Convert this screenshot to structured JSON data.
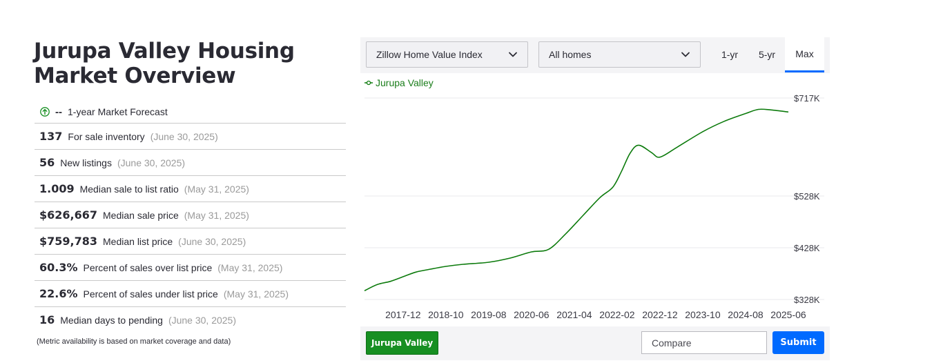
{
  "title": "Jurupa Valley Housing Market Overview",
  "forecast": {
    "value": "--",
    "label": "1-year Market Forecast",
    "icon": "arrow-up-circle-icon",
    "icon_color": "#178f22"
  },
  "metrics": [
    {
      "value": "137",
      "label": "For sale inventory",
      "date": "(June 30, 2025)"
    },
    {
      "value": "56",
      "label": "New listings",
      "date": "(June 30, 2025)"
    },
    {
      "value": "1.009",
      "label": "Median sale to list ratio",
      "date": "(May 31, 2025)"
    },
    {
      "value": "$626,667",
      "label": "Median sale price",
      "date": "(May 31, 2025)"
    },
    {
      "value": "$759,783",
      "label": "Median list price",
      "date": "(June 30, 2025)"
    },
    {
      "value": "60.3%",
      "label": "Percent of sales over list price",
      "date": "(May 31, 2025)"
    },
    {
      "value": "22.6%",
      "label": "Percent of sales under list price",
      "date": "(May 31, 2025)"
    },
    {
      "value": "16",
      "label": "Median days to pending",
      "date": "(June 30, 2025)"
    }
  ],
  "note": "(Metric availability is based on market coverage and data)",
  "controls": {
    "index_select": "Zillow Home Value Index",
    "home_type_select": "All homes",
    "tabs": [
      "1-yr",
      "5-yr",
      "Max"
    ],
    "active_tab": "Max"
  },
  "chart_data": {
    "type": "line",
    "series": [
      {
        "name": "Jurupa Valley",
        "color": "#0b7a0b",
        "points": [
          [
            "2017-03",
            345
          ],
          [
            "2017-06",
            357
          ],
          [
            "2017-09",
            363
          ],
          [
            "2017-12",
            372
          ],
          [
            "2018-03",
            381
          ],
          [
            "2018-06",
            386
          ],
          [
            "2018-10",
            392
          ],
          [
            "2019-02",
            396
          ],
          [
            "2019-08",
            400
          ],
          [
            "2020-01",
            408
          ],
          [
            "2020-06",
            420
          ],
          [
            "2020-10",
            425
          ],
          [
            "2021-02",
            455
          ],
          [
            "2021-06",
            490
          ],
          [
            "2021-10",
            525
          ],
          [
            "2022-01",
            545
          ],
          [
            "2022-03",
            575
          ],
          [
            "2022-05",
            610
          ],
          [
            "2022-07",
            626
          ],
          [
            "2022-10",
            612
          ],
          [
            "2022-12",
            603
          ],
          [
            "2023-04",
            622
          ],
          [
            "2023-10",
            652
          ],
          [
            "2024-03",
            672
          ],
          [
            "2024-08",
            687
          ],
          [
            "2024-11",
            695
          ],
          [
            "2025-02",
            694
          ],
          [
            "2025-06",
            690
          ]
        ]
      }
    ],
    "x_ticks": [
      "2017-12",
      "2018-10",
      "2019-08",
      "2020-06",
      "2021-04",
      "2022-02",
      "2022-12",
      "2023-10",
      "2024-08",
      "2025-06"
    ],
    "y_ticks": [
      "$328K",
      "$428K",
      "$528K",
      "$717K"
    ],
    "y_tick_values": [
      328,
      428,
      528,
      717
    ],
    "xlim": [
      "2017-03",
      "2025-06"
    ],
    "y_unit": "thousands USD",
    "grid": true,
    "legend": "top-left"
  },
  "bottom": {
    "location_button": "Jurupa Valley",
    "compare_placeholder": "Compare",
    "submit_label": "Submit"
  }
}
